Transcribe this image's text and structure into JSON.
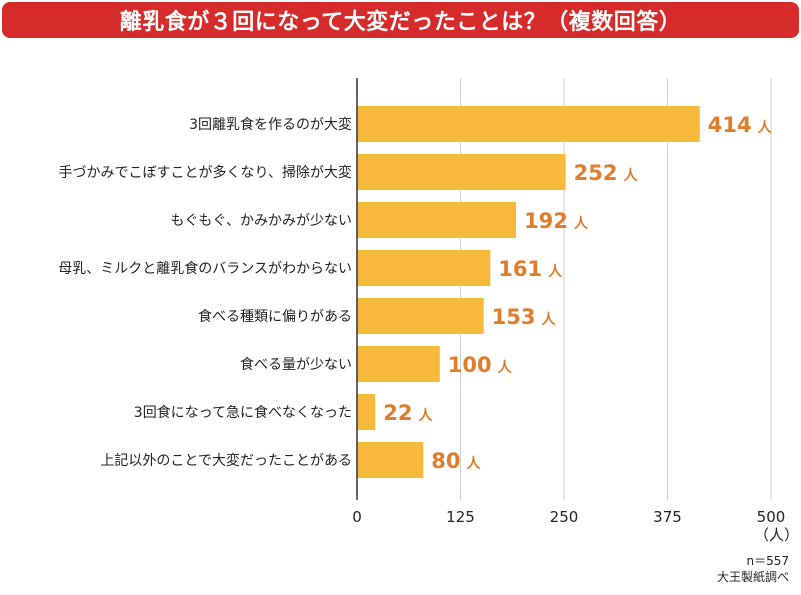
{
  "title": "離乳食が３回になって大変だったことは？（複数回答）",
  "colors": {
    "title_bg": "#d52b2b",
    "bar": "#f7b93a",
    "value_text": "#e07d2c",
    "grid": "#cccccc",
    "axis": "#333333"
  },
  "chart_data": {
    "type": "bar",
    "orientation": "horizontal",
    "title": "離乳食が３回になって大変だったことは？（複数回答）",
    "categories": [
      "3回離乳食を作るのが大変",
      "手づかみでこぼすことが多くなり、掃除が大変",
      "もぐもぐ、かみかみが少ない",
      "母乳、ミルクと離乳食のバランスがわからない",
      "食べる種類に偏りがある",
      "食べる量が少ない",
      "3回食になって急に食べなくなった",
      "上記以外のことで大変だったことがある"
    ],
    "values": [
      414,
      252,
      192,
      161,
      153,
      100,
      22,
      80
    ],
    "value_unit": "人",
    "xlim": [
      0,
      500
    ],
    "ticks": [
      "0",
      "125",
      "250",
      "375",
      "500"
    ],
    "xlabel": "（人）",
    "grid": true
  },
  "footnote": {
    "sample": "n＝557",
    "source": "大王製紙調べ"
  }
}
